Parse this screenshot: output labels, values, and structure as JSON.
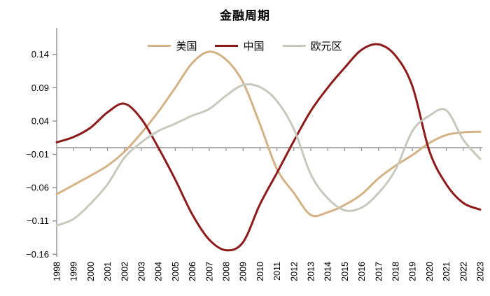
{
  "title": "金融周期",
  "chart_data": {
    "type": "line",
    "title": "金融周期",
    "xlabel": "",
    "ylabel": "",
    "grid": false,
    "legend_position": "top-center",
    "x": [
      1998,
      1999,
      2000,
      2001,
      2002,
      2003,
      2004,
      2005,
      2006,
      2007,
      2008,
      2009,
      2010,
      2011,
      2012,
      2013,
      2014,
      2015,
      2016,
      2017,
      2018,
      2019,
      2020,
      2021,
      2022,
      2023
    ],
    "x_labels": [
      "1998",
      "1999",
      "2000",
      "2001",
      "2002",
      "2003",
      "2004",
      "2005",
      "2006",
      "2007",
      "2008",
      "2009",
      "2010",
      "2011",
      "2012",
      "2013",
      "2014",
      "2015",
      "2016",
      "2017",
      "2018",
      "2019",
      "2020",
      "2021",
      "2022",
      "2023"
    ],
    "series": [
      {
        "key": "us",
        "name": "美国",
        "color": "#D3B285",
        "values": [
          -0.07,
          -0.056,
          -0.042,
          -0.027,
          -0.006,
          0.022,
          0.054,
          0.09,
          0.127,
          0.144,
          0.132,
          0.098,
          0.035,
          -0.032,
          -0.068,
          -0.101,
          -0.097,
          -0.086,
          -0.07,
          -0.046,
          -0.027,
          -0.011,
          0.007,
          0.019,
          0.023,
          0.024
        ]
      },
      {
        "key": "china",
        "name": "中国",
        "color": "#8C1A1A",
        "values": [
          0.008,
          0.016,
          0.03,
          0.053,
          0.066,
          0.043,
          0.0,
          -0.048,
          -0.1,
          -0.138,
          -0.154,
          -0.142,
          -0.085,
          -0.038,
          0.01,
          0.055,
          0.09,
          0.12,
          0.147,
          0.155,
          0.138,
          0.092,
          -0.005,
          -0.055,
          -0.083,
          -0.093
        ]
      },
      {
        "key": "eurozone",
        "name": "欧元区",
        "color": "#C6C9BC",
        "values": [
          -0.117,
          -0.107,
          -0.084,
          -0.055,
          -0.015,
          0.008,
          0.025,
          0.036,
          0.048,
          0.058,
          0.078,
          0.094,
          0.091,
          0.07,
          0.028,
          -0.04,
          -0.076,
          -0.094,
          -0.09,
          -0.068,
          -0.033,
          0.025,
          0.048,
          0.056,
          0.012,
          -0.017
        ]
      }
    ],
    "y_ticks": [
      {
        "value": 0.14,
        "label": "0.14"
      },
      {
        "value": 0.09,
        "label": "0.09"
      },
      {
        "value": 0.04,
        "label": "0.04"
      },
      {
        "value": -0.01,
        "label": "−0.01"
      },
      {
        "value": -0.06,
        "label": "−0.06"
      },
      {
        "value": -0.11,
        "label": "−0.11"
      },
      {
        "value": -0.16,
        "label": "−0.16"
      }
    ],
    "ylim": [
      -0.16,
      0.16
    ],
    "zero_line": 0
  },
  "style": {
    "axis_color": "#7f7f7f",
    "text_color": "#000000",
    "line_width": 3
  }
}
